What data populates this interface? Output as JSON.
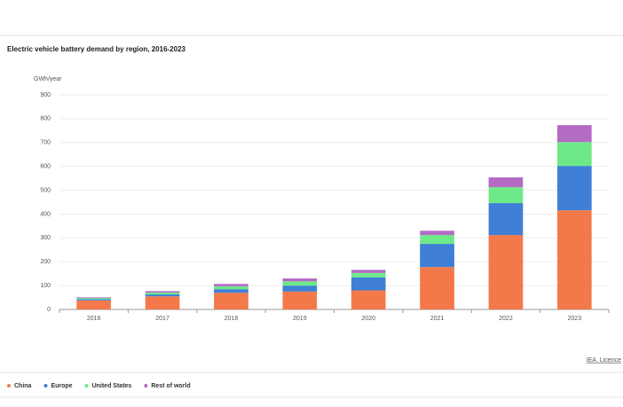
{
  "chart_data": {
    "type": "stacked_bar",
    "title": "Electric vehicle battery demand by region, 2016-2023",
    "y_axis_label": "GWh/year",
    "categories": [
      "2016",
      "2017",
      "2018",
      "2019",
      "2020",
      "2021",
      "2022",
      "2023"
    ],
    "series": [
      {
        "name": "China",
        "color": "#f4794a",
        "values": [
          38,
          55,
          70,
          75,
          80,
          178,
          312,
          416
        ]
      },
      {
        "name": "Europe",
        "color": "#3f7fd6",
        "values": [
          5,
          8,
          15,
          25,
          55,
          97,
          134,
          186
        ]
      },
      {
        "name": "United States",
        "color": "#6ee98a",
        "values": [
          5,
          8,
          12,
          18,
          18,
          37,
          67,
          100
        ]
      },
      {
        "name": "Rest of world",
        "color": "#b36bc4",
        "values": [
          3,
          6,
          10,
          12,
          13,
          18,
          41,
          71
        ]
      }
    ],
    "ylim": [
      0,
      900
    ],
    "yticks": [
      0,
      100,
      200,
      300,
      400,
      500,
      600,
      700,
      800,
      900
    ],
    "grid": true,
    "source": "IEA. Licence"
  }
}
